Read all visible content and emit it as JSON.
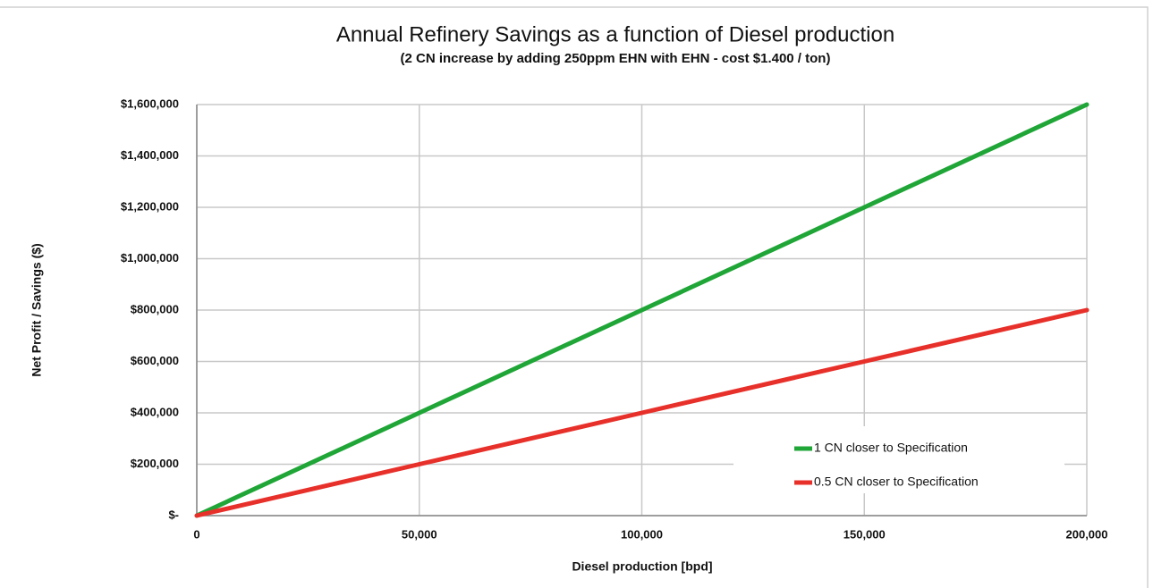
{
  "chart_data": {
    "type": "line",
    "title": "Annual Refinery Savings as a function of Diesel production",
    "subtitle": "(2 CN increase by adding 250ppm EHN with EHN - cost  $1.400 / ton)",
    "x_label": "Diesel production [bpd]",
    "y_label": "Net Profit / Savings ($)",
    "x": [
      0,
      50000,
      100000,
      150000,
      200000
    ],
    "series": [
      {
        "name": "1 CN closer to Specification",
        "color": "#1fa637",
        "values": [
          0,
          400000,
          800000,
          1200000,
          1600000
        ]
      },
      {
        "name": "0.5 CN closer to Specification",
        "color": "#e8302a",
        "values": [
          0,
          200000,
          400000,
          600000,
          800000
        ]
      }
    ],
    "xlim": [
      0,
      200000
    ],
    "xticks": [
      0,
      {
        "value": 50000,
        "label": "50,000"
      },
      {
        "value": 100000,
        "label": "100,000"
      },
      {
        "value": 150000,
        "label": "150,000"
      },
      {
        "value": 200000,
        "label": "200,000"
      }
    ],
    "ylim": [
      0,
      1600000
    ],
    "yticks": [
      {
        "value": 0,
        "label": "$-"
      },
      {
        "value": 200000,
        "label": "$200,000"
      },
      {
        "value": 400000,
        "label": "$400,000"
      },
      {
        "value": 600000,
        "label": "$600,000"
      },
      {
        "value": 800000,
        "label": "$800,000"
      },
      {
        "value": 1000000,
        "label": "$1,000,000"
      },
      {
        "value": 1200000,
        "label": "$1,200,000"
      },
      {
        "value": 1400000,
        "label": "$1,400,000"
      },
      {
        "value": 1600000,
        "label": "$1,600,000"
      }
    ],
    "grid": true,
    "legend": "lower right"
  }
}
